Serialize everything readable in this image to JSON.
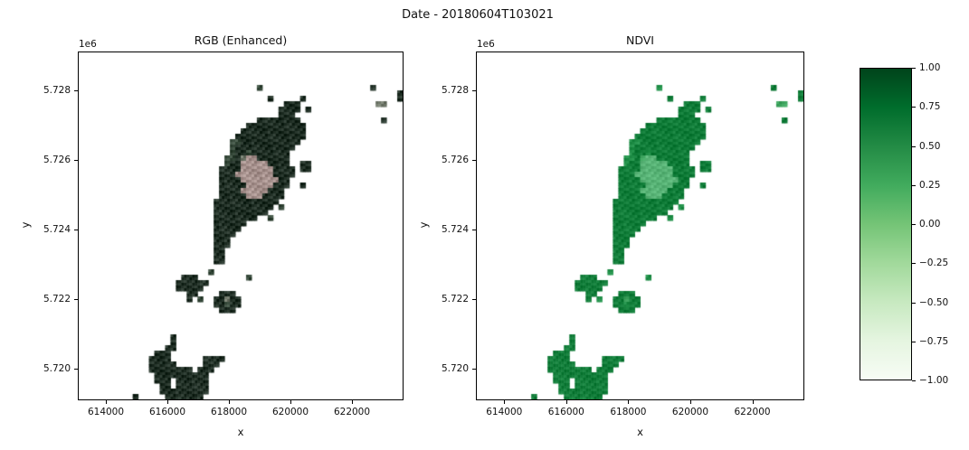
{
  "figure": {
    "suptitle": "Date - 20180604T103021",
    "background": "#ffffff"
  },
  "chart_data": [
    {
      "type": "heatmap",
      "subtype": "satellite-rgb-raster",
      "title": "RGB (Enhanced)",
      "xlabel": "x",
      "ylabel": "y",
      "offset_label": "1e6",
      "xlim": [
        613088,
        623676
      ],
      "ylim": [
        5719091,
        5729117
      ],
      "grid": false,
      "x_ticks": [
        {
          "label": "614000",
          "value": 614000
        },
        {
          "label": "616000",
          "value": 616000
        },
        {
          "label": "618000",
          "value": 618000
        },
        {
          "label": "620000",
          "value": 620000
        },
        {
          "label": "622000",
          "value": 622000
        }
      ],
      "y_ticks": [
        {
          "label": "5.728",
          "value": 5728000
        },
        {
          "label": "5.726",
          "value": 5726000
        },
        {
          "label": "5.724",
          "value": 5724000
        },
        {
          "label": "5.722",
          "value": 5722000
        },
        {
          "label": "5.720",
          "value": 5720000
        }
      ],
      "palette": {
        "D": "#1e2d23",
        "M": "#36493a",
        "L": "#6b7365",
        "P": "#a5908c"
      },
      "jitter": 5
    },
    {
      "type": "heatmap",
      "subtype": "ndvi-raster",
      "title": "NDVI",
      "xlabel": "x",
      "ylabel": "y",
      "offset_label": "1e6",
      "xlim": [
        613088,
        623676
      ],
      "ylim": [
        5719091,
        5729117
      ],
      "grid": false,
      "x_ticks": [
        {
          "label": "614000",
          "value": 614000
        },
        {
          "label": "616000",
          "value": 616000
        },
        {
          "label": "618000",
          "value": 618000
        },
        {
          "label": "620000",
          "value": 620000
        },
        {
          "label": "622000",
          "value": 622000
        }
      ],
      "y_ticks": [
        {
          "label": "5.728",
          "value": 5728000
        },
        {
          "label": "5.726",
          "value": 5726000
        },
        {
          "label": "5.724",
          "value": 5724000
        },
        {
          "label": "5.722",
          "value": 5722000
        },
        {
          "label": "5.720",
          "value": 5720000
        }
      ],
      "palette": {
        "D": "#107c38",
        "M": "#1f8e47",
        "L": "#3ea45f",
        "P": "#58b376"
      },
      "jitter": 3,
      "colorbar": {
        "cmap": "Greens",
        "min": -1.0,
        "max": 1.0,
        "ticks": [
          {
            "label": "1.00",
            "value": 1.0
          },
          {
            "label": "0.75",
            "value": 0.75
          },
          {
            "label": "0.50",
            "value": 0.5
          },
          {
            "label": "0.25",
            "value": 0.25
          },
          {
            "label": "0.00",
            "value": 0.0
          },
          {
            "label": "−0.25",
            "value": -0.25
          },
          {
            "label": "−0.50",
            "value": -0.5
          },
          {
            "label": "−0.75",
            "value": -0.75
          },
          {
            "label": "−1.00",
            "value": -1.0
          }
        ]
      }
    }
  ],
  "raster": {
    "cols": 60,
    "rows": 64,
    "classes": {
      "D": "dense-vegetation",
      "M": "vegetation",
      "L": "sparse-vegetation",
      "P": "built-up-low-ndvi"
    },
    "rows_mask": [
      "............................................................",
      "............................................................",
      "............................................................",
      "............................................................",
      "............................................................",
      "............................................................",
      ".................................M....................D.....",
      "...........................................................D",
      "...................................D.....D.................D",
      "......................................DDD..............LL...",
      ".....................................DDDD.D.................",
      ".....................................DDD....................",
      ".................................DDDDDDDD...............D...",
      "...............................DDDDDDDDDDD..................",
      "..............................DDDDDDDDDDDD..................",
      ".............................DDDDDDDDDDDDD..................",
      "............................MMDDDDDDDDDDD...................",
      "............................MDDDDDDDDDDD....................",
      "............................MDDMDDDDDDD.....................",
      "...........................MMDLPPDDDDDD.....................",
      "...........................MDDPPPPPDDDD..DD.................",
      "..........................DDDDPPPPPPDDDD.DD.................",
      "..........................DDDPPPPPPPDDDD....................",
      "..........................DDDDPPPPPPPDD.....................",
      "..........................DDDDDPPPPPDDD..D..................",
      "..........................DDDDPPPPPDDD......................",
      "..........................DDDDDPPPDDDD......................",
      ".........................DDDDDDDDDDDD.......................",
      ".........................DDDDDDDDDDD.M......................",
      ".........................DDDDDDDDDD.........................",
      ".........................DDDDDDDD..M........................",
      ".........................DDDDDD.............................",
      ".........................DDDDD..............................",
      ".........................DDDD...............................",
      ".........................DDD................................",
      ".........................DDD................................",
      ".........................DD.................................",
      ".........................DD.................................",
      ".........................DD.................................",
      "............................................................",
      "........................M...................................",
      "...................DDD.........M............................",
      "..................DDDDDD....................................",
      "..................DDDDD.....................................",
      "....................DD....DDD...............................",
      "....................D.M..DDLDD..............................",
      ".........................DDMDD..............................",
      "..........................DDD...............................",
      "............................................................",
      "............................................................",
      "............................................................",
      "............................................................",
      ".................D..........................................",
      ".................D..........................................",
      "................DD..........................................",
      "..............DDD...........................................",
      ".............DDDD......DDDD.................................",
      ".............DDDDD.....DDD..................................",
      ".............DDDDDDDD.DDD...................................",
      "..............DDDDDDDDDD....................................",
      "..............DDD.DDDDDD....................................",
      "...............DD.DDDDDD....................................",
      "...............DDDDDDDDD....................................",
      "..........D.....DDDDDDD....................................."
    ]
  }
}
